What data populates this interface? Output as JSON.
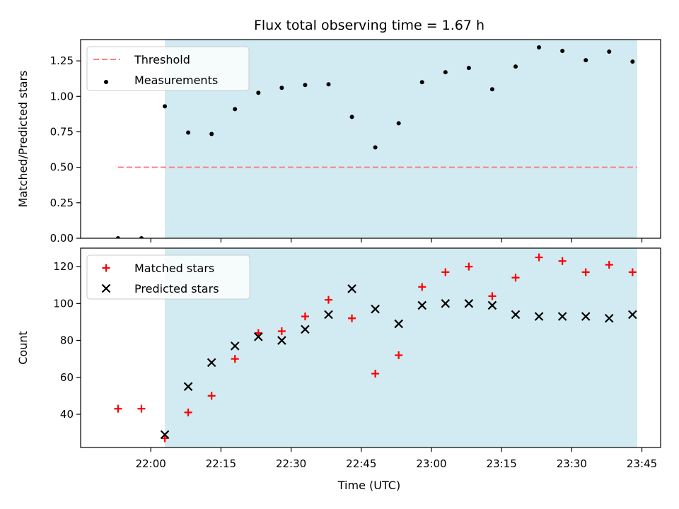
{
  "chart_data": {
    "title": "Flux total observing time = 1.67 h",
    "colors": {
      "shade": "#add8e6",
      "threshold": "#ff7f7f",
      "measurement": "#000000",
      "matched": "#ff0000",
      "predicted": "#000000"
    },
    "x_axis": {
      "label": "Time (UTC)",
      "type": "time",
      "range": [
        "21:45",
        "23:49"
      ],
      "ticks": [
        "22:00",
        "22:15",
        "22:30",
        "22:45",
        "23:00",
        "23:15",
        "23:30",
        "23:45"
      ]
    },
    "shaded_interval": [
      "22:03",
      "23:44"
    ],
    "panels": [
      {
        "type": "scatter",
        "ylabel": "Matched/Predicted stars",
        "ylim": [
          0.0,
          1.4
        ],
        "yticks": [
          "0.00",
          "0.25",
          "0.50",
          "0.75",
          "1.00",
          "1.25"
        ],
        "legend_position": "upper-left",
        "series": [
          {
            "name": "Threshold",
            "kind": "dashed-line",
            "x": [
              "21:53",
              "23:44"
            ],
            "y": [
              0.5,
              0.5
            ]
          },
          {
            "name": "Measurements",
            "kind": "dot",
            "x": [
              "21:53",
              "21:58",
              "22:03",
              "22:08",
              "22:13",
              "22:18",
              "22:23",
              "22:28",
              "22:33",
              "22:38",
              "22:43",
              "22:48",
              "22:53",
              "22:58",
              "23:03",
              "23:08",
              "23:13",
              "23:18",
              "23:23",
              "23:28",
              "23:33",
              "23:38",
              "23:43"
            ],
            "y": [
              0.0,
              0.0,
              0.93,
              0.745,
              0.735,
              0.91,
              1.025,
              1.06,
              1.08,
              1.085,
              0.855,
              0.64,
              0.81,
              1.1,
              1.17,
              1.2,
              1.05,
              1.21,
              1.345,
              1.32,
              1.255,
              1.315,
              1.245
            ]
          }
        ]
      },
      {
        "type": "scatter",
        "ylabel": "Count",
        "ylim": [
          22,
          130
        ],
        "yticks": [
          "40",
          "60",
          "80",
          "100",
          "120"
        ],
        "legend_position": "upper-left",
        "series": [
          {
            "name": "Matched stars",
            "kind": "plus",
            "x": [
              "21:53",
              "21:58",
              "22:03",
              "22:08",
              "22:13",
              "22:18",
              "22:23",
              "22:28",
              "22:33",
              "22:38",
              "22:43",
              "22:48",
              "22:53",
              "22:58",
              "23:03",
              "23:08",
              "23:13",
              "23:18",
              "23:23",
              "23:28",
              "23:33",
              "23:38",
              "23:43"
            ],
            "y": [
              43,
              43,
              27,
              41,
              50,
              70,
              84,
              85,
              93,
              102,
              92,
              62,
              72,
              109,
              117,
              120,
              104,
              114,
              125,
              123,
              117,
              121,
              117
            ]
          },
          {
            "name": "Predicted stars",
            "kind": "cross",
            "x": [
              "22:03",
              "22:08",
              "22:13",
              "22:18",
              "22:23",
              "22:28",
              "22:33",
              "22:38",
              "22:43",
              "22:48",
              "22:53",
              "22:58",
              "23:03",
              "23:08",
              "23:13",
              "23:18",
              "23:23",
              "23:28",
              "23:33",
              "23:38",
              "23:43"
            ],
            "y": [
              29,
              55,
              68,
              77,
              82,
              80,
              86,
              94,
              108,
              97,
              89,
              99,
              100,
              100,
              99,
              94,
              93,
              93,
              93,
              92,
              94
            ]
          }
        ]
      }
    ]
  }
}
